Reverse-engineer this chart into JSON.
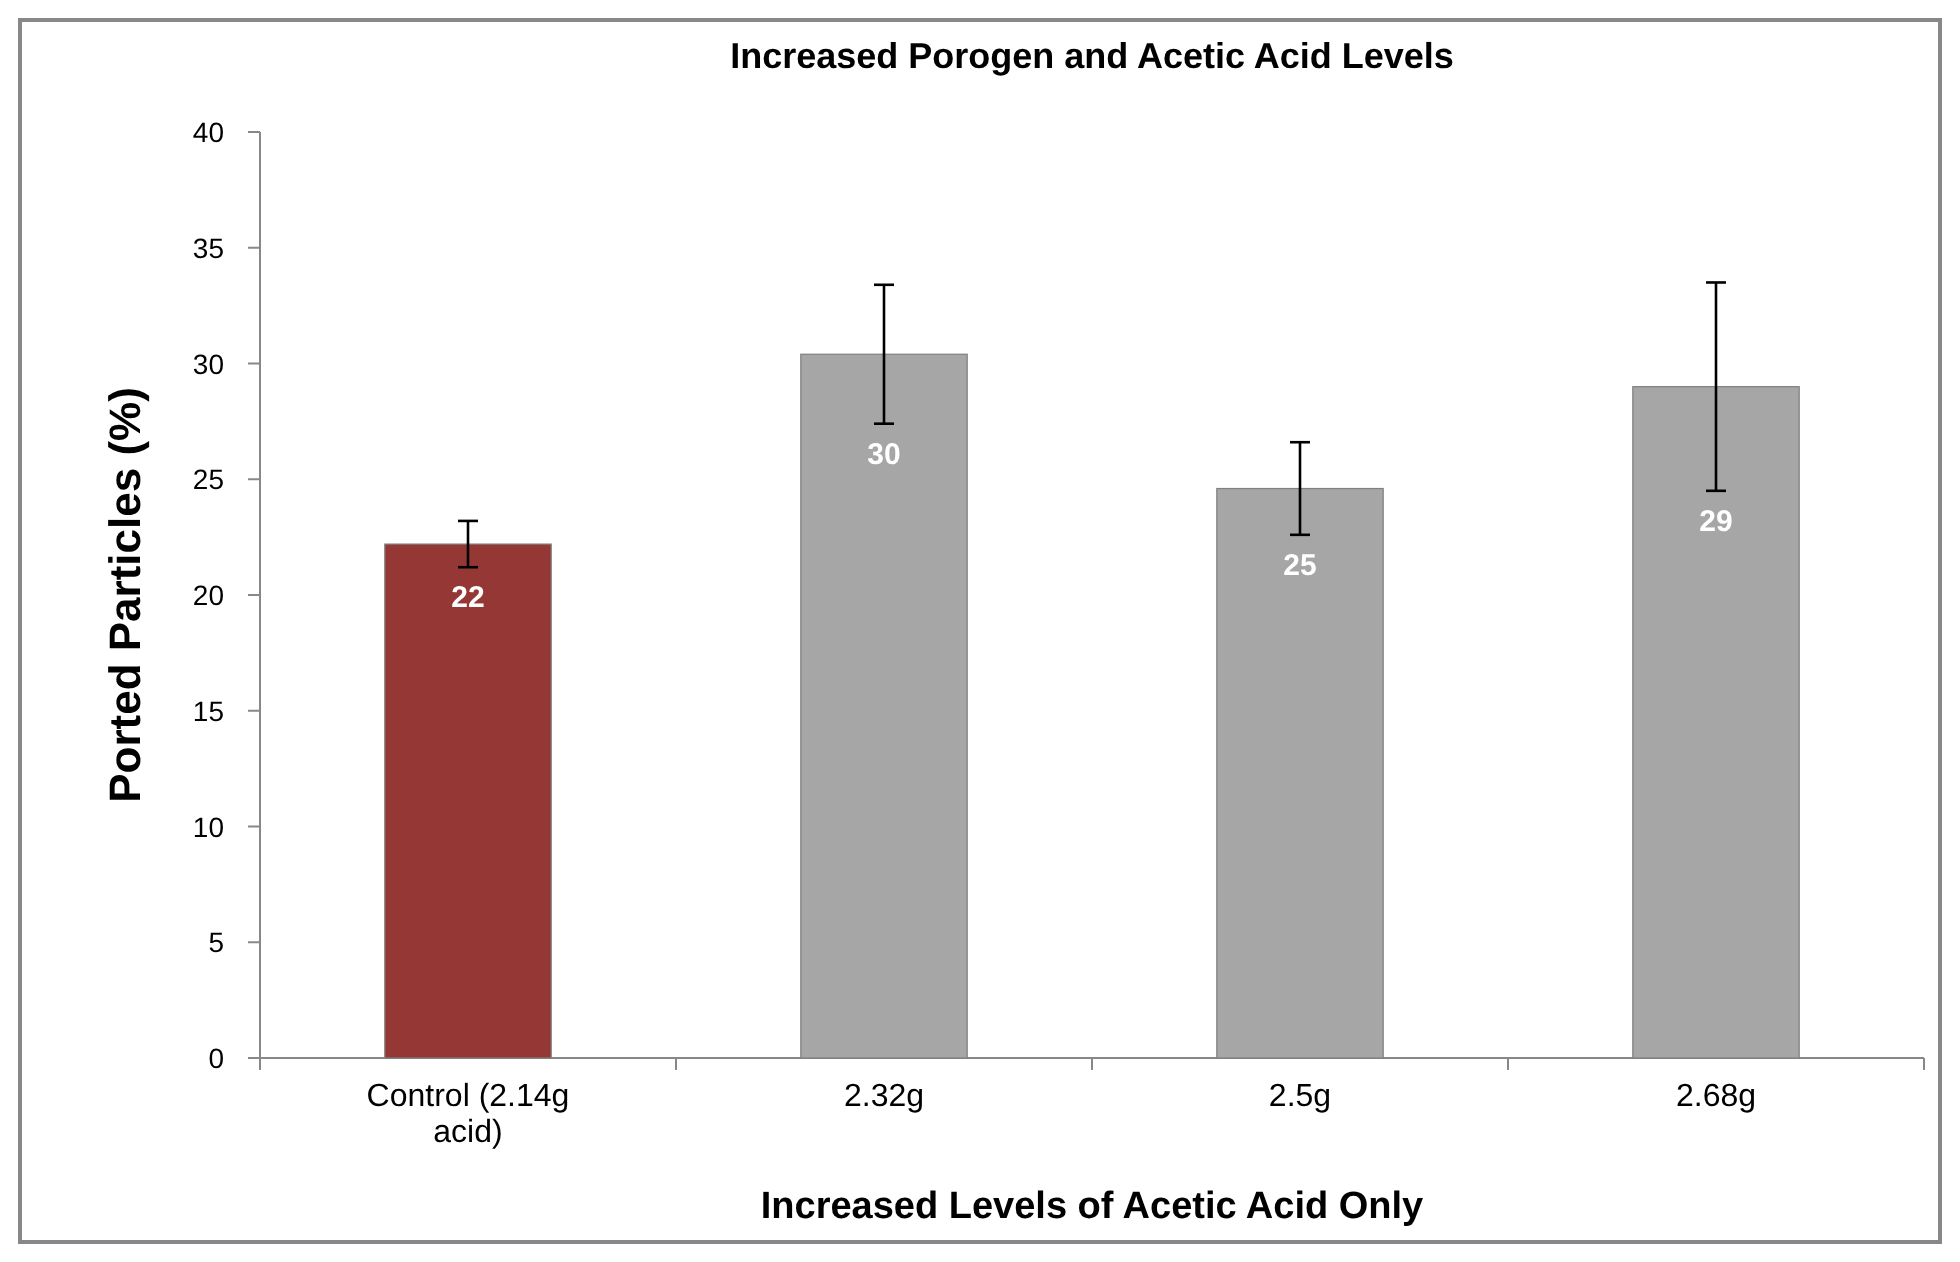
{
  "chart_data": {
    "type": "bar",
    "title": "Increased Porogen and Acetic Acid Levels",
    "xlabel": "Increased Levels of Acetic Acid Only",
    "ylabel": "Ported Particles (%)",
    "categories": [
      "Control (2.14g acid)",
      "2.32g",
      "2.5g",
      "2.68g"
    ],
    "values": [
      22.2,
      30.4,
      24.6,
      29.0
    ],
    "colors": [
      "#953735",
      "#a6a6a6",
      "#a6a6a6",
      "#a6a6a6"
    ],
    "errors": [
      1,
      3,
      2,
      4.5
    ],
    "value_labels": [
      "22",
      "30",
      "25",
      "29"
    ],
    "ylim": [
      0,
      40
    ],
    "yticks": [
      0,
      5,
      10,
      15,
      20,
      25,
      30,
      35,
      40
    ]
  }
}
